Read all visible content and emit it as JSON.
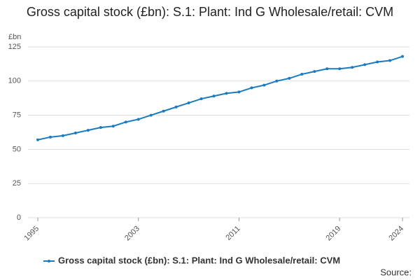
{
  "chart_data": {
    "type": "line",
    "title": "Gross capital stock (£bn): S.1: Plant: Ind G Wholesale/retail: CVM",
    "y_label": "£bn",
    "source": "Source:",
    "x": [
      1995,
      1996,
      1997,
      1998,
      1999,
      2000,
      2001,
      2002,
      2003,
      2004,
      2005,
      2006,
      2007,
      2008,
      2009,
      2010,
      2011,
      2012,
      2013,
      2014,
      2015,
      2016,
      2017,
      2018,
      2019,
      2020,
      2021,
      2022,
      2023,
      2024
    ],
    "series": [
      {
        "name": "Gross capital stock (£bn): S.1: Plant: Ind G Wholesale/retail: CVM",
        "color": "#1a7bbf",
        "values": [
          57,
          59,
          60,
          62,
          64,
          66,
          67,
          70,
          72,
          75,
          78,
          81,
          84,
          87,
          89,
          91,
          92,
          95,
          97,
          100,
          102,
          105,
          107,
          109,
          109,
          110,
          112,
          114,
          115,
          118
        ]
      }
    ],
    "xlim": [
      1995,
      2024
    ],
    "xticks": [
      1995,
      2003,
      2011,
      2019,
      2024
    ],
    "ylim": [
      0,
      125
    ],
    "yticks": [
      0,
      25,
      50,
      75,
      100,
      125
    ],
    "grid": true,
    "legend": "bottom"
  }
}
